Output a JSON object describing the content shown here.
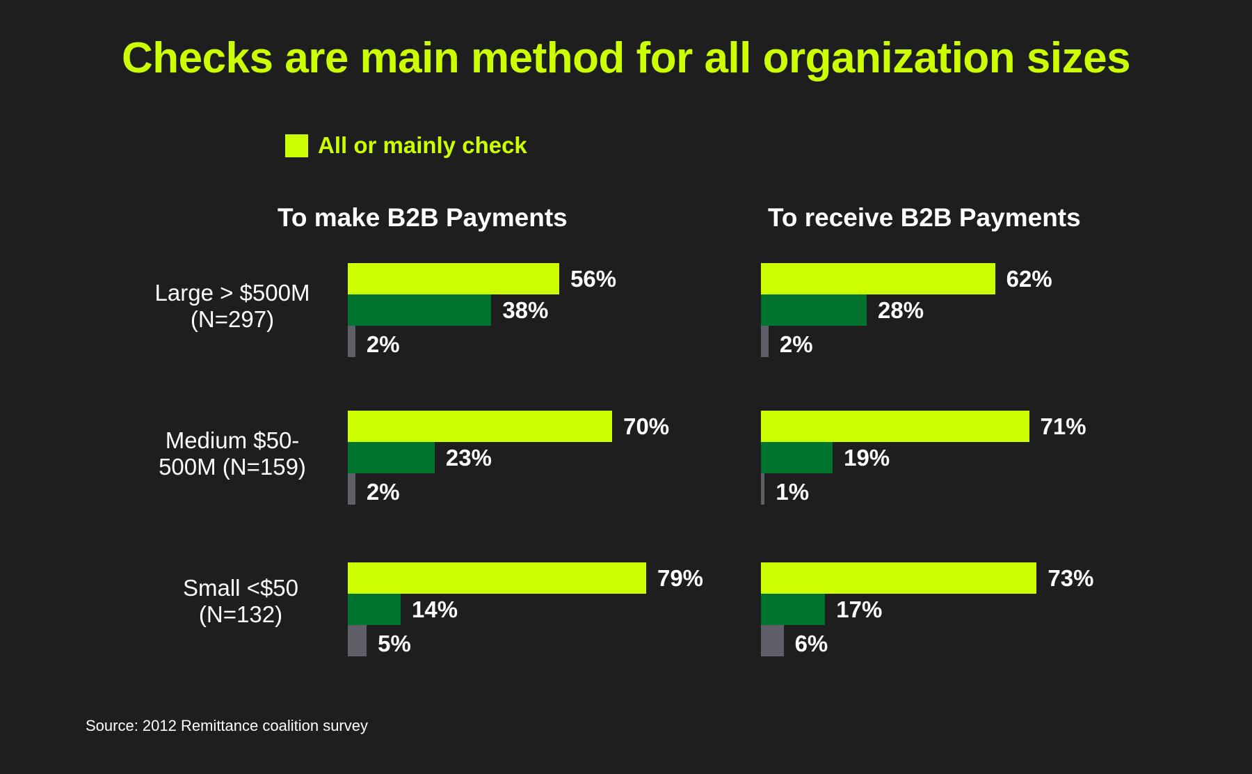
{
  "title": "Checks are main method for all organization sizes",
  "legend": {
    "label": "All or mainly check",
    "color": "#ccff00"
  },
  "panels": [
    {
      "title": "To make B2B Payments"
    },
    {
      "title": "To receive B2B Payments"
    }
  ],
  "groups": [
    {
      "label_line1": "Large > $500M",
      "label_line2": "(N=297)"
    },
    {
      "label_line1": "Medium $50-",
      "label_line2": "500M (N=159)"
    },
    {
      "label_line1": "Small <$50",
      "label_line2": "(N=132)"
    }
  ],
  "colors": {
    "all_or_mainly_check": "#ccff00",
    "series2": "#00732e",
    "series3": "#5e5f69",
    "background": "#1e1e1e"
  },
  "source": "Source: 2012 Remittance coalition survey",
  "chart_data": [
    {
      "type": "bar",
      "orientation": "horizontal",
      "title": "To make B2B Payments",
      "categories": [
        "Large > $500M (N=297)",
        "Medium $50-500M (N=159)",
        "Small <$50 (N=132)"
      ],
      "series": [
        {
          "name": "All or mainly check",
          "color": "#ccff00",
          "values": [
            56,
            70,
            79
          ]
        },
        {
          "name": "(unlabeled series 2)",
          "color": "#00732e",
          "values": [
            38,
            23,
            14
          ]
        },
        {
          "name": "(unlabeled series 3)",
          "color": "#5e5f69",
          "values": [
            2,
            2,
            5
          ]
        }
      ],
      "labels": [
        [
          "56%",
          "38%",
          "2%"
        ],
        [
          "70%",
          "23%",
          "2%"
        ],
        [
          "79%",
          "14%",
          "5%"
        ]
      ],
      "xlabel": "",
      "ylabel": "",
      "xlim": [
        0,
        100
      ],
      "grid": false,
      "legend_position": "top-left"
    },
    {
      "type": "bar",
      "orientation": "horizontal",
      "title": "To receive B2B Payments",
      "categories": [
        "Large > $500M (N=297)",
        "Medium $50-500M (N=159)",
        "Small <$50 (N=132)"
      ],
      "series": [
        {
          "name": "All or mainly check",
          "color": "#ccff00",
          "values": [
            62,
            71,
            73
          ]
        },
        {
          "name": "(unlabeled series 2)",
          "color": "#00732e",
          "values": [
            28,
            19,
            17
          ]
        },
        {
          "name": "(unlabeled series 3)",
          "color": "#5e5f69",
          "values": [
            2,
            1,
            6
          ]
        }
      ],
      "labels": [
        [
          "62%",
          "28%",
          "2%"
        ],
        [
          "71%",
          "19%",
          "1%"
        ],
        [
          "73%",
          "17%",
          "6%"
        ]
      ],
      "xlabel": "",
      "ylabel": "",
      "xlim": [
        0,
        100
      ],
      "grid": false,
      "legend_position": "top-left"
    }
  ]
}
